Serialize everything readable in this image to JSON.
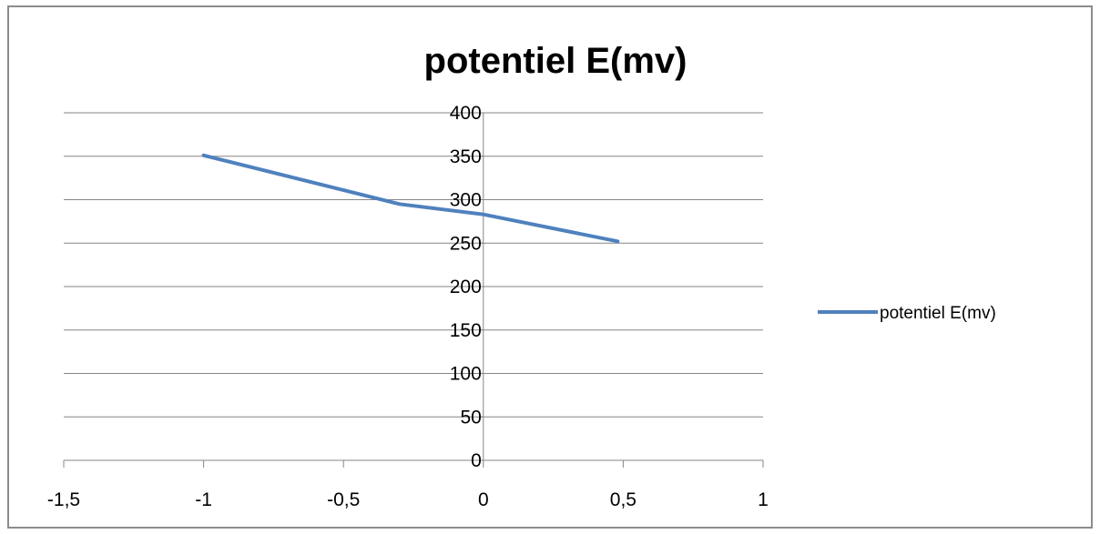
{
  "chart_data": {
    "type": "scatter",
    "title": "potentiel E(mv)",
    "xlabel": "",
    "ylabel": "",
    "xlim": [
      -1.5,
      1
    ],
    "ylim": [
      0,
      400
    ],
    "x_ticks": [
      -1.5,
      -1,
      -0.5,
      0,
      0.5,
      1
    ],
    "x_tick_labels": [
      "-1,5",
      "-1",
      "-0,5",
      "0",
      "0,5",
      "1"
    ],
    "y_ticks": [
      0,
      50,
      100,
      150,
      200,
      250,
      300,
      350,
      400
    ],
    "y_tick_labels": [
      "0",
      "50",
      "100",
      "150",
      "200",
      "250",
      "300",
      "350",
      "400"
    ],
    "grid": "horizontal major gridlines",
    "legend_position": "right",
    "series": [
      {
        "name": "potentiel E(mv)",
        "color": "#4f81bd",
        "line": "smooth, no markers",
        "x": [
          -1,
          -0.3,
          0,
          0.48
        ],
        "y": [
          351,
          295,
          283,
          252
        ]
      }
    ]
  }
}
